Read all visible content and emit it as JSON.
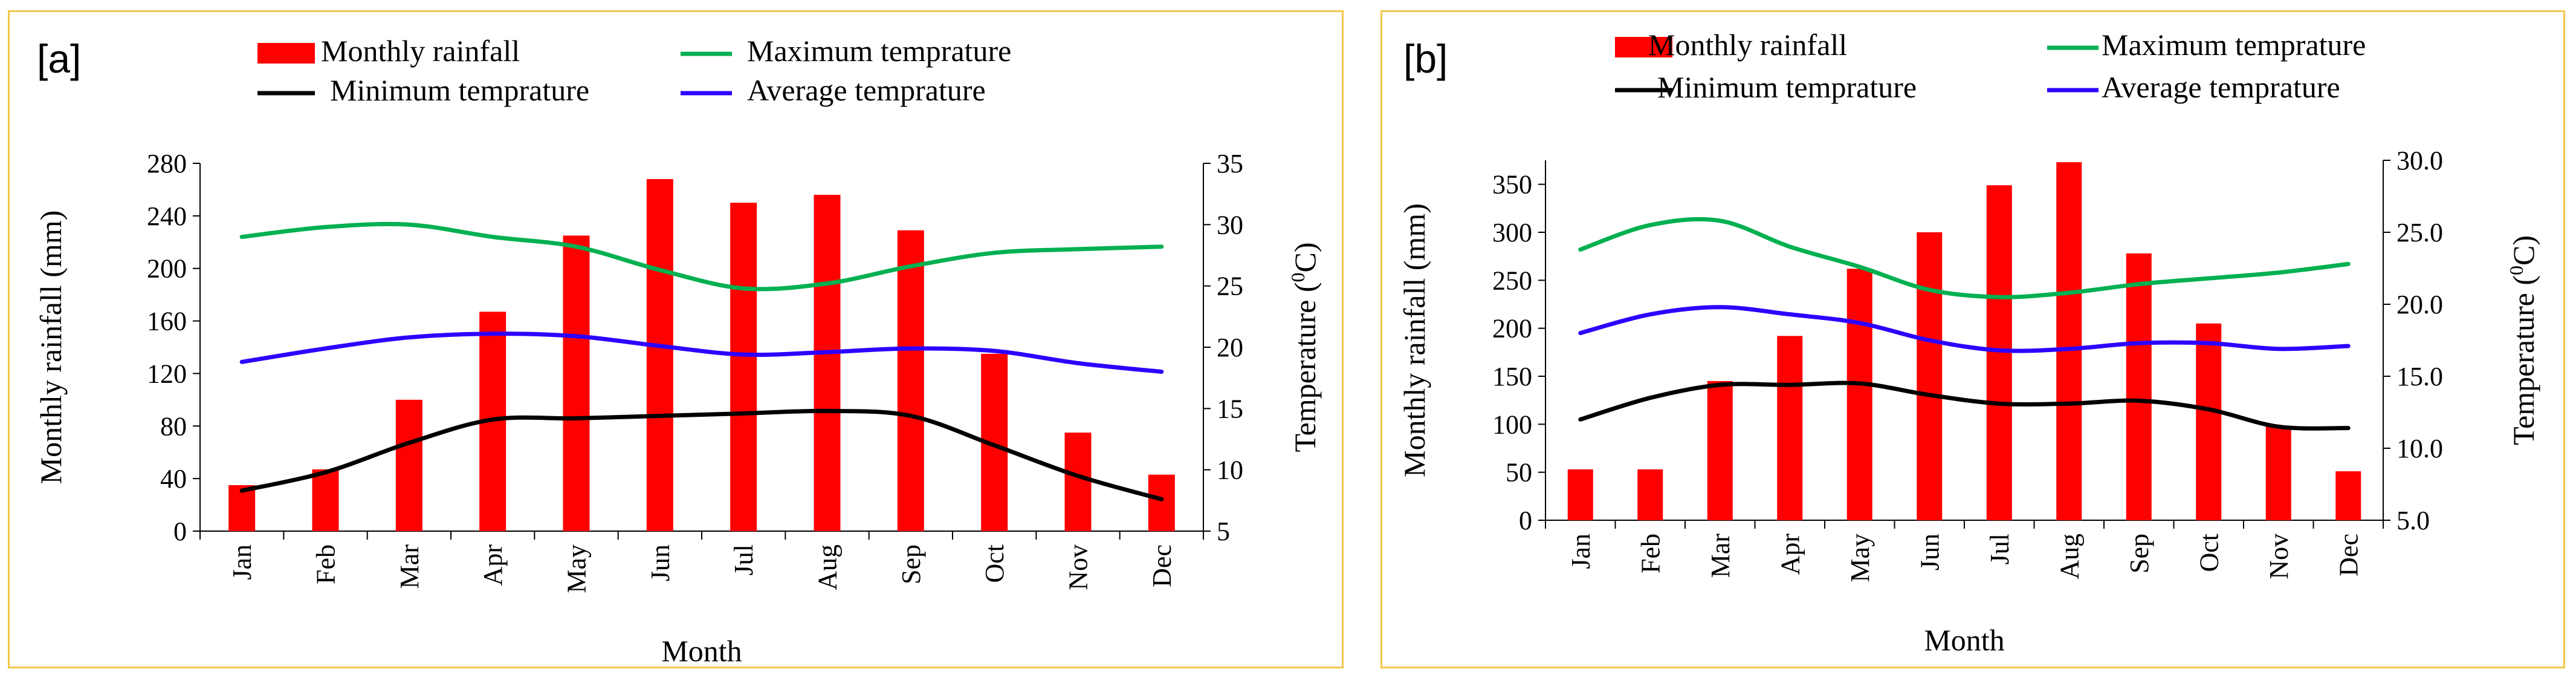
{
  "chart_data": [
    {
      "type": "bar",
      "panel_label": "[a]",
      "categories": [
        "Jan",
        "Feb",
        "Mar",
        "Apr",
        "May",
        "Jun",
        "Jul",
        "Aug",
        "Sep",
        "Oct",
        "Nov",
        "Dec"
      ],
      "xlabel": "Month",
      "ylabel": "Monthly rainfall (mm)",
      "y2label_prefix": "Temperature (",
      "y2label_sup": "0",
      "y2label_suffix": "C)",
      "ylim": [
        0,
        280
      ],
      "yticks": [
        0,
        40,
        80,
        120,
        160,
        200,
        240,
        280
      ],
      "y2lim": [
        5,
        35
      ],
      "y2ticks": [
        5,
        10,
        15,
        20,
        25,
        30,
        35
      ],
      "y2tick_decimals": 0,
      "series": [
        {
          "name": "Monthly rainfall",
          "kind": "bar",
          "axis": "left",
          "color": "#ff0000",
          "values": [
            35,
            47,
            100,
            167,
            225,
            268,
            250,
            256,
            229,
            135,
            75,
            43
          ]
        },
        {
          "name": "Maximum temprature",
          "kind": "line",
          "axis": "right",
          "color": "#00b050",
          "values": [
            29.0,
            29.8,
            30.0,
            29.0,
            28.2,
            26.3,
            24.8,
            25.2,
            26.6,
            27.7,
            28.0,
            28.2
          ]
        },
        {
          "name": "Minimum temprature",
          "kind": "line",
          "axis": "right",
          "color": "#000000",
          "values": [
            8.3,
            9.8,
            12.2,
            14.1,
            14.2,
            14.4,
            14.6,
            14.8,
            14.4,
            12.0,
            9.5,
            7.6
          ]
        },
        {
          "name": "Average temprature",
          "kind": "line",
          "axis": "right",
          "color": "#2e00ff",
          "values": [
            18.8,
            19.9,
            20.8,
            21.1,
            20.9,
            20.1,
            19.4,
            19.6,
            19.9,
            19.7,
            18.7,
            18.0
          ]
        }
      ],
      "legend_order": [
        0,
        1,
        2,
        3
      ]
    },
    {
      "type": "bar",
      "panel_label": "[b]",
      "categories": [
        "Jan",
        "Feb",
        "Mar",
        "Apr",
        "May",
        "Jun",
        "Jul",
        "Aug",
        "Sep",
        "Oct",
        "Nov",
        "Dec"
      ],
      "xlabel": "Month",
      "ylabel": "Monthly rainfall (mm)",
      "y2label_prefix": "Temperature (",
      "y2label_sup": "0",
      "y2label_suffix": "C)",
      "ylim": [
        0,
        375
      ],
      "yticks": [
        0,
        50,
        100,
        150,
        200,
        250,
        300,
        350
      ],
      "y2lim": [
        5,
        30
      ],
      "y2ticks": [
        5,
        10,
        15,
        20,
        25,
        30
      ],
      "y2tick_decimals": 1,
      "series": [
        {
          "name": "Monthly rainfall",
          "kind": "bar",
          "axis": "left",
          "color": "#ff0000",
          "values": [
            53,
            53,
            145,
            192,
            262,
            300,
            349,
            373,
            278,
            205,
            98,
            51
          ]
        },
        {
          "name": "Maximum temprature",
          "kind": "line",
          "axis": "right",
          "color": "#00b050",
          "values": [
            23.8,
            25.5,
            25.8,
            24.0,
            22.6,
            21.0,
            20.5,
            20.8,
            21.4,
            21.8,
            22.2,
            22.8
          ]
        },
        {
          "name": "Minimum temprature",
          "kind": "line",
          "axis": "right",
          "color": "#000000",
          "values": [
            12.0,
            13.5,
            14.4,
            14.4,
            14.5,
            13.7,
            13.1,
            13.1,
            13.3,
            12.7,
            11.5,
            11.4
          ]
        },
        {
          "name": "Average temprature",
          "kind": "line",
          "axis": "right",
          "color": "#2e00ff",
          "values": [
            18.0,
            19.3,
            19.8,
            19.3,
            18.7,
            17.5,
            16.8,
            16.9,
            17.3,
            17.3,
            16.9,
            17.1
          ]
        }
      ],
      "legend_order": [
        0,
        1,
        2,
        3
      ]
    }
  ]
}
